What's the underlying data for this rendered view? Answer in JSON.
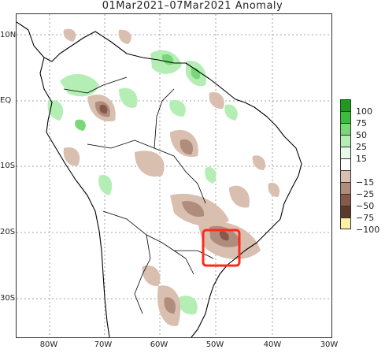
{
  "title": "01Mar2021–07Mar2021  Anomaly",
  "y_ticks": [
    "10N",
    "EQ",
    "10S",
    "20S",
    "30S"
  ],
  "x_ticks": [
    "80W",
    "70W",
    "60W",
    "50W",
    "40W",
    "30W"
  ],
  "legend": {
    "labels": [
      "100",
      "75",
      "50",
      "25",
      "15",
      "−15",
      "−25",
      "−50",
      "−75",
      "−100"
    ],
    "colors": [
      "#1e9a1e",
      "#3cbc3c",
      "#78d878",
      "#b4eeb4",
      "#e8fae8",
      "#ffffff",
      "#d9bfb0",
      "#b08c7c",
      "#86594a",
      "#5b3a2c",
      "#fdf0a6"
    ]
  },
  "colors": {
    "wet_light": "#b4eeb4",
    "wet_mid": "#78d878",
    "dry_light": "#d9bfb0",
    "dry_mid": "#b08c7c",
    "dry_dark": "#86594a",
    "highlight_box": "#ff2a1a",
    "coast": "#000000",
    "grid": "#888888"
  }
}
